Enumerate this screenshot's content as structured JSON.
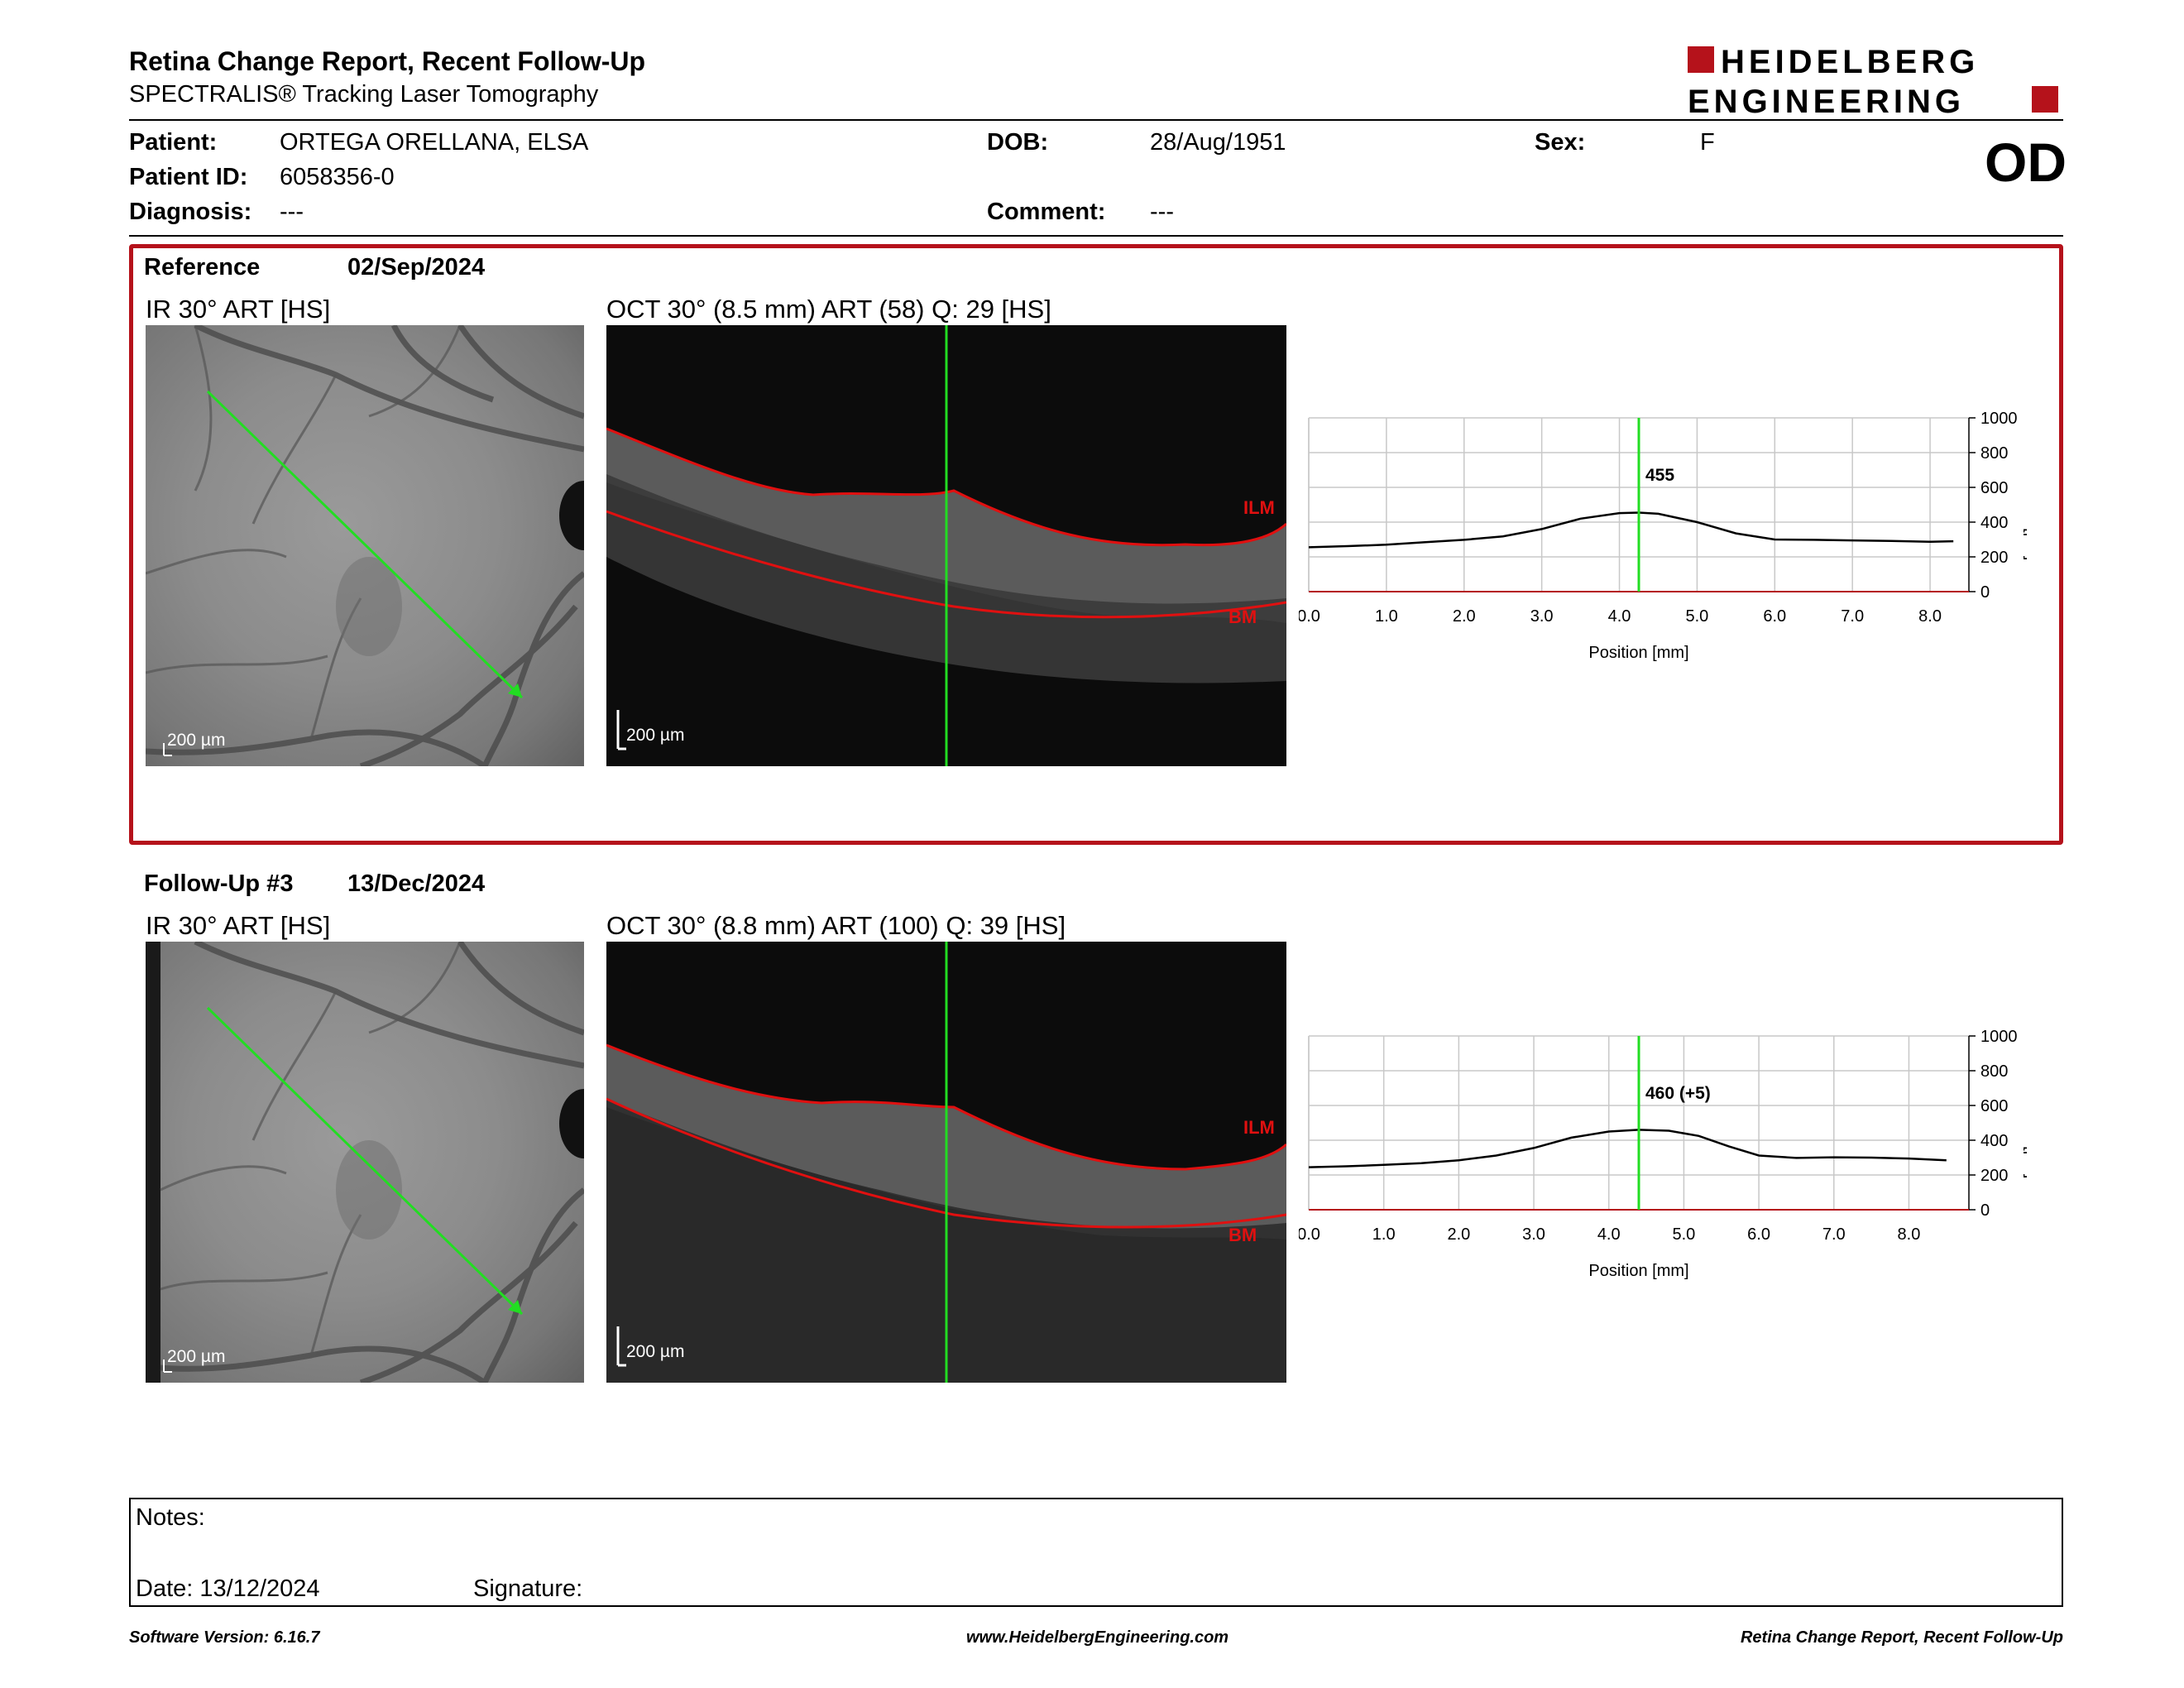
{
  "header": {
    "title": "Retina Change Report, Recent Follow-Up",
    "subtitle": "SPECTRALIS® Tracking Laser Tomography",
    "logo_line1": "HEIDELBERG",
    "logo_line2": "ENGINEERING",
    "eye": "OD"
  },
  "patient": {
    "patient_label": "Patient:",
    "patient_value": "ORTEGA ORELLANA, ELSA",
    "id_label": "Patient ID:",
    "id_value": "6058356-0",
    "diagnosis_label": "Diagnosis:",
    "diagnosis_value": "---",
    "dob_label": "DOB:",
    "dob_value": "28/Aug/1951",
    "comment_label": "Comment:",
    "comment_value": "---",
    "sex_label": "Sex:",
    "sex_value": "F"
  },
  "reference": {
    "label": "Reference",
    "date": "02/Sep/2024",
    "ir_caption": "IR 30° ART [HS]",
    "oct_caption": "OCT 30° (8.5 mm) ART (58) Q: 29 [HS]",
    "ir_scale": "200 µm",
    "oct_scale": "200 µm",
    "ilm_label": "ILM",
    "bm_label": "BM"
  },
  "followup": {
    "label": "Follow-Up #3",
    "date": "13/Dec/2024",
    "ir_caption": "IR 30° ART [HS]",
    "oct_caption": "OCT 30° (8.8 mm) ART (100) Q: 39 [HS]",
    "ir_scale": "200 µm",
    "oct_scale": "200 µm",
    "ilm_label": "ILM",
    "bm_label": "BM"
  },
  "notes": {
    "notes_label": "Notes:",
    "date_label": "Date: 13/12/2024",
    "signature_label": "Signature:"
  },
  "footer": {
    "left": "Software Version: 6.16.7",
    "center": "www.HeidelbergEngineering.com",
    "right": "Retina Change Report, Recent Follow-Up"
  },
  "colors": {
    "brand_red": "#b5121b",
    "marker_green": "#22dd22",
    "segmentation_red": "#e01010"
  },
  "chart_data": [
    {
      "type": "line",
      "xlabel": "Position [mm]",
      "ylabel": "Thickness [µm]",
      "xlim": [
        0,
        8.5
      ],
      "ylim": [
        0,
        1000
      ],
      "xticks": [
        "0.0",
        "1.0",
        "2.0",
        "3.0",
        "4.0",
        "5.0",
        "6.0",
        "7.0",
        "8.0"
      ],
      "yticks": [
        "0",
        "200",
        "400",
        "600",
        "800",
        "1000"
      ],
      "grid": true,
      "marker_x": 4.25,
      "marker_label": "455",
      "series": [
        {
          "x": [
            0,
            0.5,
            1.0,
            1.5,
            2.0,
            2.5,
            3.0,
            3.5,
            4.0,
            4.25,
            4.5,
            5.0,
            5.5,
            6.0,
            6.5,
            7.0,
            7.5,
            8.0,
            8.3
          ],
          "y": [
            255,
            262,
            270,
            285,
            298,
            318,
            360,
            420,
            452,
            455,
            448,
            400,
            335,
            300,
            298,
            295,
            292,
            287,
            290
          ]
        }
      ]
    },
    {
      "type": "line",
      "xlabel": "Position [mm]",
      "ylabel": "Thickness [µm]",
      "xlim": [
        0,
        8.8
      ],
      "ylim": [
        0,
        1000
      ],
      "xticks": [
        "0.0",
        "1.0",
        "2.0",
        "3.0",
        "4.0",
        "5.0",
        "6.0",
        "7.0",
        "8.0"
      ],
      "yticks": [
        "0",
        "200",
        "400",
        "600",
        "800",
        "1000"
      ],
      "grid": true,
      "marker_x": 4.4,
      "marker_label": "460 (+5)",
      "series": [
        {
          "x": [
            0,
            0.5,
            1.0,
            1.5,
            2.0,
            2.5,
            3.0,
            3.5,
            4.0,
            4.4,
            4.8,
            5.2,
            5.6,
            6.0,
            6.5,
            7.0,
            7.5,
            8.0,
            8.5
          ],
          "y": [
            245,
            250,
            258,
            268,
            285,
            312,
            355,
            415,
            450,
            460,
            455,
            425,
            365,
            312,
            298,
            302,
            300,
            295,
            285
          ]
        }
      ]
    }
  ]
}
